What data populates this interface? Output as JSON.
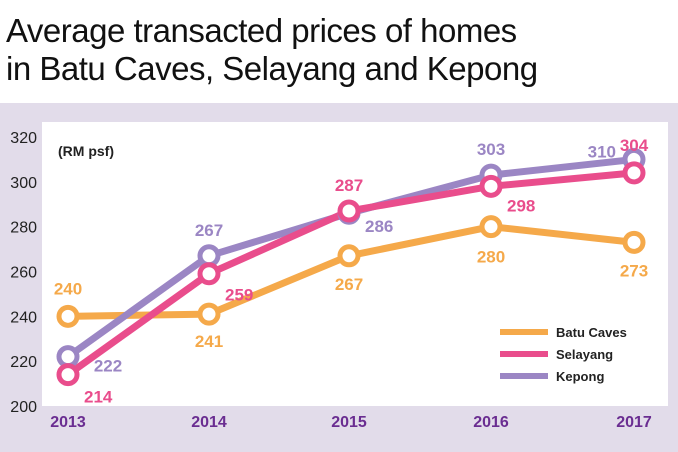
{
  "chart_data": {
    "type": "line",
    "title_lines": [
      "Average transacted prices of homes",
      "in Batu Caves, Selayang and Kepong"
    ],
    "unit_label": "(RM psf)",
    "categories": [
      "2013",
      "2014",
      "2015",
      "2016",
      "2017"
    ],
    "ylim": [
      200,
      320
    ],
    "yticks": [
      "200",
      "220",
      "240",
      "260",
      "280",
      "300",
      "320"
    ],
    "grid": false,
    "legend_position": "bottom-right",
    "series": [
      {
        "name": "Batu Caves",
        "color": "#f5a94a",
        "values": [
          240,
          241,
          267,
          280,
          273
        ]
      },
      {
        "name": "Selayang",
        "color": "#e94d8c",
        "values": [
          214,
          259,
          287,
          298,
          304
        ]
      },
      {
        "name": "Kepong",
        "color": "#9b86c4",
        "values": [
          222,
          267,
          286,
          303,
          310
        ]
      }
    ],
    "axis_label_color": "#6a2d91"
  }
}
